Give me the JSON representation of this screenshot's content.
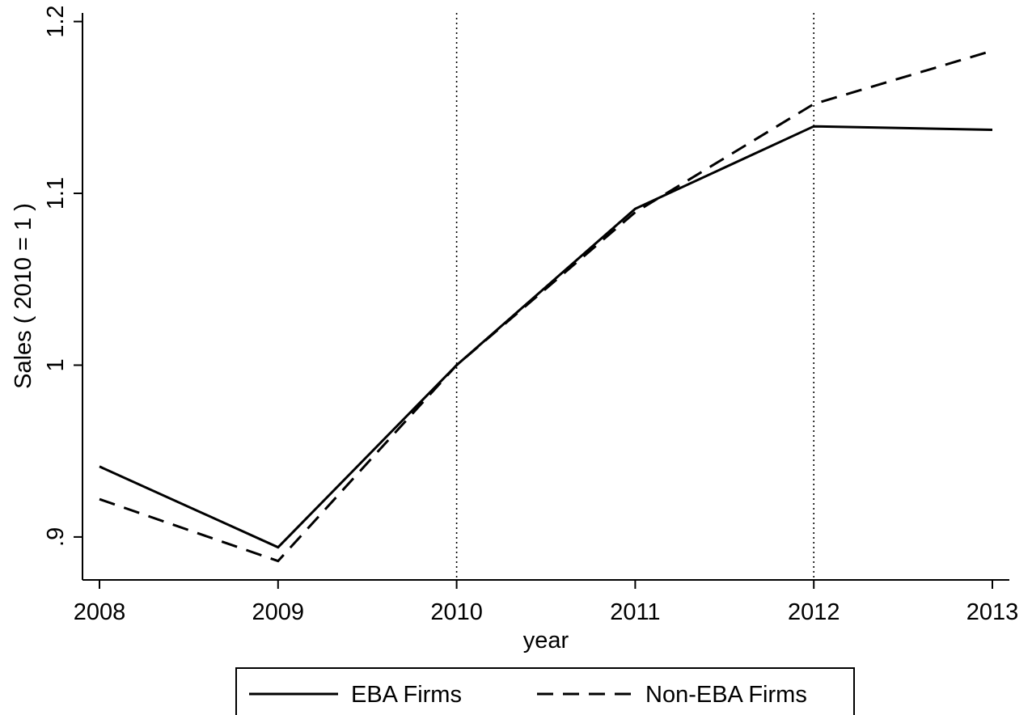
{
  "chart_data": {
    "type": "line",
    "title": "",
    "xlabel": "year",
    "ylabel": "Sales ( 2010 = 1 )",
    "x": [
      2008,
      2009,
      2010,
      2011,
      2012,
      2013
    ],
    "xticks": [
      "2008",
      "2009",
      "2010",
      "2011",
      "2012",
      "2013"
    ],
    "xlim": [
      2008,
      2013
    ],
    "ylim": [
      0.875,
      1.205
    ],
    "yticks": [
      0.9,
      1.0,
      1.1,
      1.2
    ],
    "ytick_labels": [
      ".9",
      "1",
      "1.1",
      "1.2"
    ],
    "reference_lines_x": [
      2010,
      2012
    ],
    "grid": false,
    "legend_position": "bottom",
    "series": [
      {
        "name": "EBA Firms",
        "style": "solid",
        "color": "#000000",
        "values": [
          0.941,
          0.894,
          1.0,
          1.091,
          1.139,
          1.137
        ]
      },
      {
        "name": "Non-EBA Firms",
        "style": "dashed",
        "color": "#000000",
        "values": [
          0.922,
          0.886,
          1.0,
          1.089,
          1.152,
          1.183
        ]
      }
    ]
  }
}
